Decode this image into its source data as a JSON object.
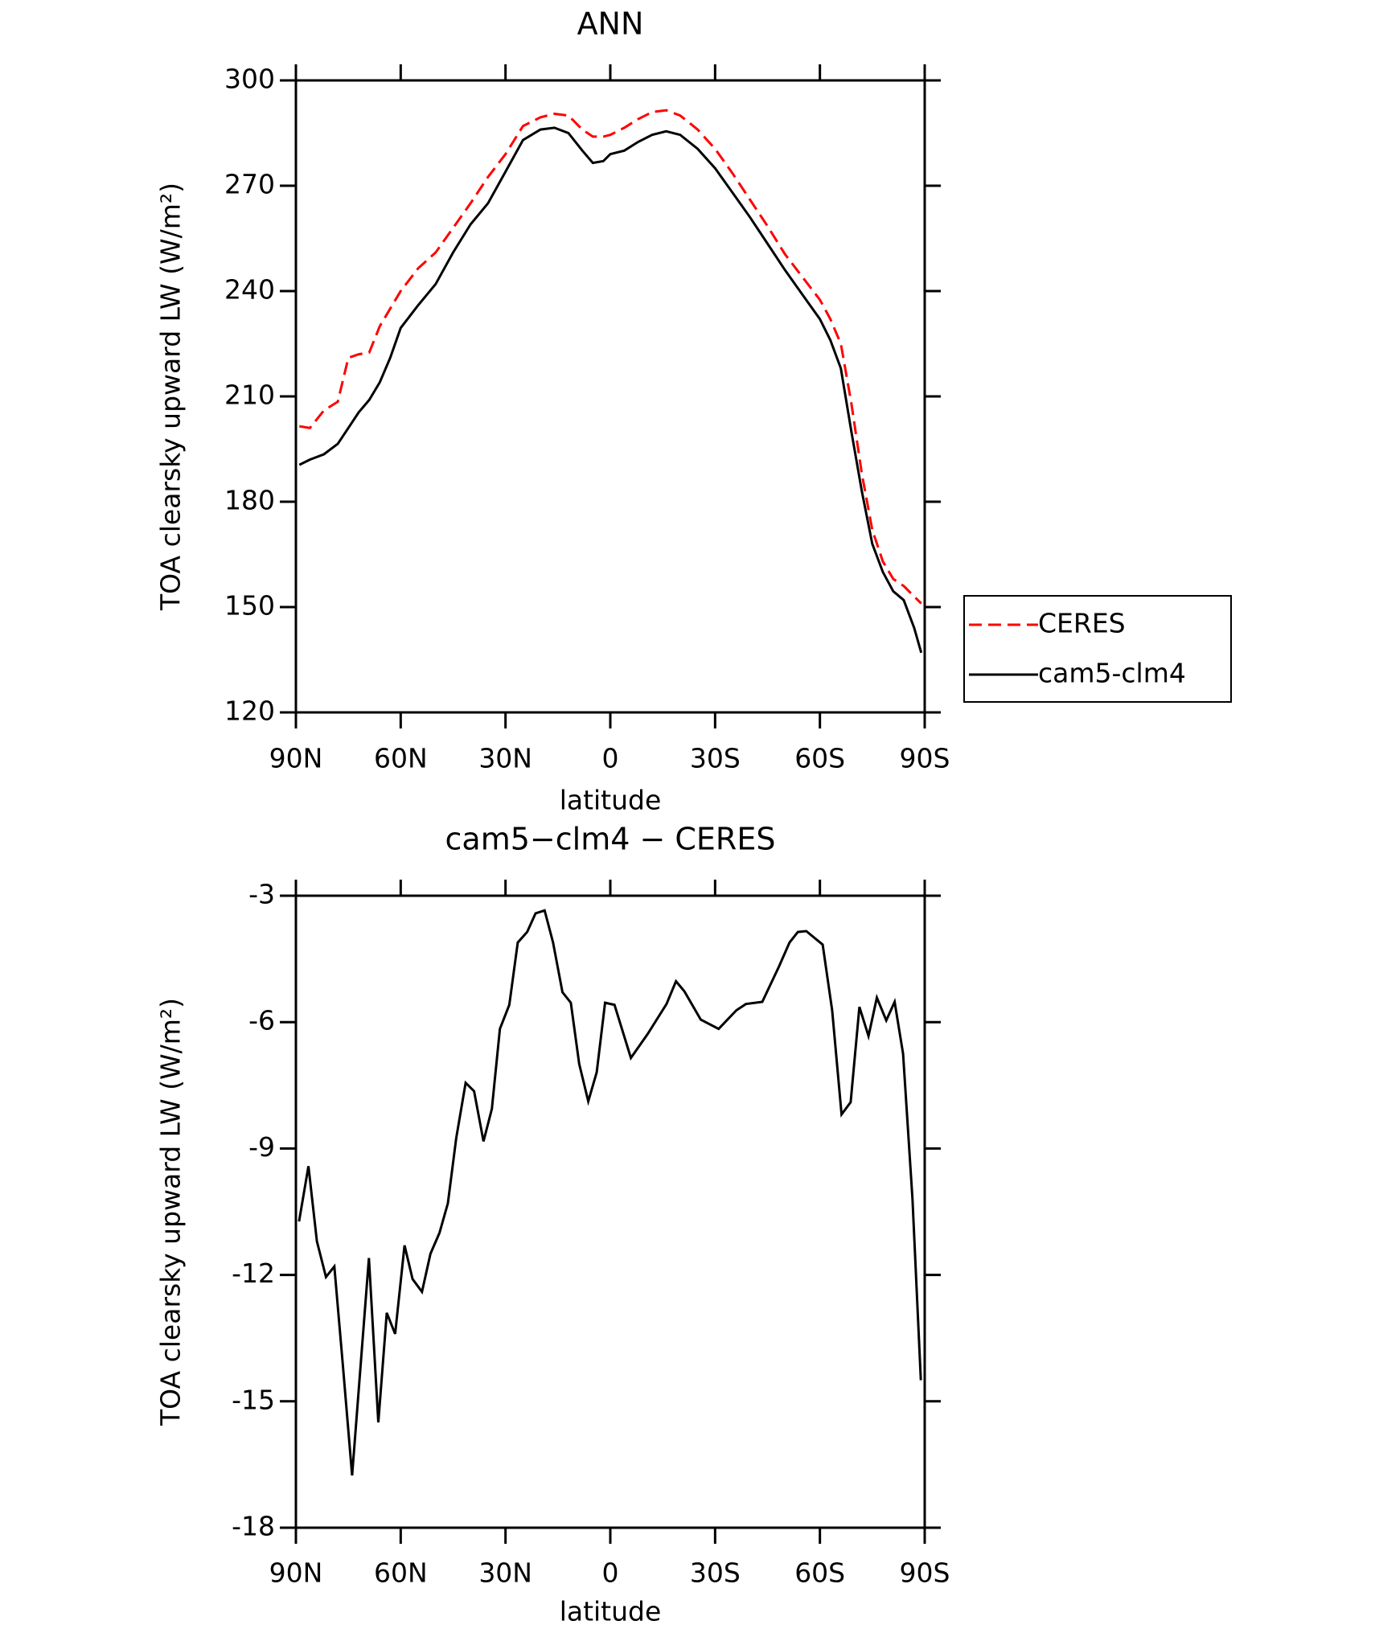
{
  "chart_data": [
    {
      "type": "line",
      "title": "ANN",
      "x_label": "latitude",
      "y_label": "TOA clearsky upward LW (W/m²)",
      "x": [
        89,
        86,
        82,
        78,
        75,
        72,
        69,
        66,
        63,
        60,
        55,
        50,
        45,
        40,
        35,
        30,
        25,
        20,
        16,
        12,
        8,
        5,
        2,
        0,
        -4,
        -8,
        -12,
        -16,
        -20,
        -25,
        -30,
        -35,
        -40,
        -45,
        -50,
        -55,
        -60,
        -63,
        -66,
        -69,
        -72,
        -75,
        -78,
        -81,
        -84,
        -87,
        -89
      ],
      "series": [
        {
          "name": "CERES",
          "color": "#ff0000",
          "dash": true,
          "values": [
            201.5,
            201,
            206,
            208.5,
            221,
            222,
            222.5,
            230,
            235,
            240,
            246.5,
            251,
            258,
            265,
            272.5,
            279,
            287,
            289.5,
            290.5,
            290,
            286,
            284,
            284,
            284.5,
            286.5,
            289,
            291,
            291.5,
            290,
            286,
            280.5,
            273.5,
            266,
            258.5,
            250.5,
            244,
            237.5,
            232,
            225,
            208,
            188,
            172,
            163,
            158,
            156,
            153,
            151
          ]
        },
        {
          "name": "cam5-clm4",
          "color": "#000000",
          "dash": false,
          "values": [
            190.5,
            192,
            193.5,
            196.5,
            201,
            205.5,
            209,
            214,
            221,
            229.5,
            236,
            242,
            251,
            259,
            265,
            274,
            283,
            286,
            286.5,
            285,
            280,
            276.5,
            277,
            279,
            280,
            282.5,
            284.5,
            285.5,
            284.5,
            280.5,
            275,
            268,
            261,
            253.5,
            246,
            239,
            232,
            226,
            218,
            200,
            183,
            168,
            160,
            154.5,
            152,
            144,
            137
          ]
        }
      ],
      "xlim": [
        90,
        -90
      ],
      "xticks": [
        {
          "value": 90,
          "label": "90N"
        },
        {
          "value": 60,
          "label": "60N"
        },
        {
          "value": 30,
          "label": "30N"
        },
        0,
        {
          "value": -30,
          "label": "30S"
        },
        {
          "value": -60,
          "label": "60S"
        },
        {
          "value": -90,
          "label": "90S"
        }
      ],
      "ylim": [
        120,
        300
      ],
      "yticks": [
        120,
        150,
        180,
        210,
        240,
        270,
        300
      ],
      "legend": "right"
    },
    {
      "type": "line",
      "title": "cam5−clm4 − CERES",
      "x_label": "latitude",
      "y_label": "TOA clearsky upward LW (W/m²)",
      "x": [
        89.1,
        86.4,
        84,
        81.4,
        79,
        76.6,
        73.9,
        69.1,
        66.4,
        64,
        61.6,
        58.9,
        56.6,
        53.9,
        51.5,
        48.9,
        46.5,
        44.1,
        41.4,
        39,
        36.3,
        33.9,
        31.6,
        28.9,
        26.5,
        23.8,
        21.4,
        18.8,
        16.4,
        13.7,
        11.3,
        8.9,
        6.3,
        3.9,
        1.5,
        -1.2,
        -5.9,
        -10.7,
        -16.1,
        -18.8,
        -21.2,
        -25.9,
        -31,
        -36.1,
        -38.8,
        -43.5,
        -48.3,
        -51.3,
        -53.7,
        -56.1,
        -60.8,
        -63.5,
        -66.2,
        -68.8,
        -71.3,
        -73.9,
        -76.3,
        -79,
        -81.4,
        -83.8,
        -86.5,
        -88.9
      ],
      "series": [
        {
          "color": "#000000",
          "dash": false,
          "values": [
            -10.73,
            -9.42,
            -11.2,
            -12.05,
            -11.8,
            -14.1,
            -16.76,
            -11.6,
            -15.5,
            -12.9,
            -13.4,
            -11.3,
            -12.1,
            -12.4,
            -11.5,
            -11,
            -10.3,
            -8.75,
            -7.44,
            -7.64,
            -8.83,
            -8.06,
            -6.16,
            -5.59,
            -4.11,
            -3.86,
            -3.42,
            -3.35,
            -4.11,
            -5.29,
            -5.54,
            -6.99,
            -7.88,
            -7.19,
            -5.54,
            -5.59,
            -6.85,
            -6.28,
            -5.57,
            -5.03,
            -5.27,
            -5.94,
            -6.16,
            -5.72,
            -5.57,
            -5.52,
            -4.68,
            -4.11,
            -3.86,
            -3.84,
            -4.16,
            -5.72,
            -8.19,
            -7.9,
            -5.64,
            -6.33,
            -5.42,
            -5.96,
            -5.52,
            -6.75,
            -10.2,
            -14.5
          ]
        }
      ],
      "xlim": [
        90,
        -90
      ],
      "xticks": [
        {
          "value": 90,
          "label": "90N"
        },
        {
          "value": 60,
          "label": "60N"
        },
        {
          "value": 30,
          "label": "30N"
        },
        0,
        {
          "value": -30,
          "label": "30S"
        },
        {
          "value": -60,
          "label": "60S"
        },
        {
          "value": -90,
          "label": "90S"
        }
      ],
      "ylim": [
        -18,
        -3
      ],
      "yticks": [
        -18,
        -15,
        -12,
        -9,
        -6,
        -3
      ]
    }
  ]
}
